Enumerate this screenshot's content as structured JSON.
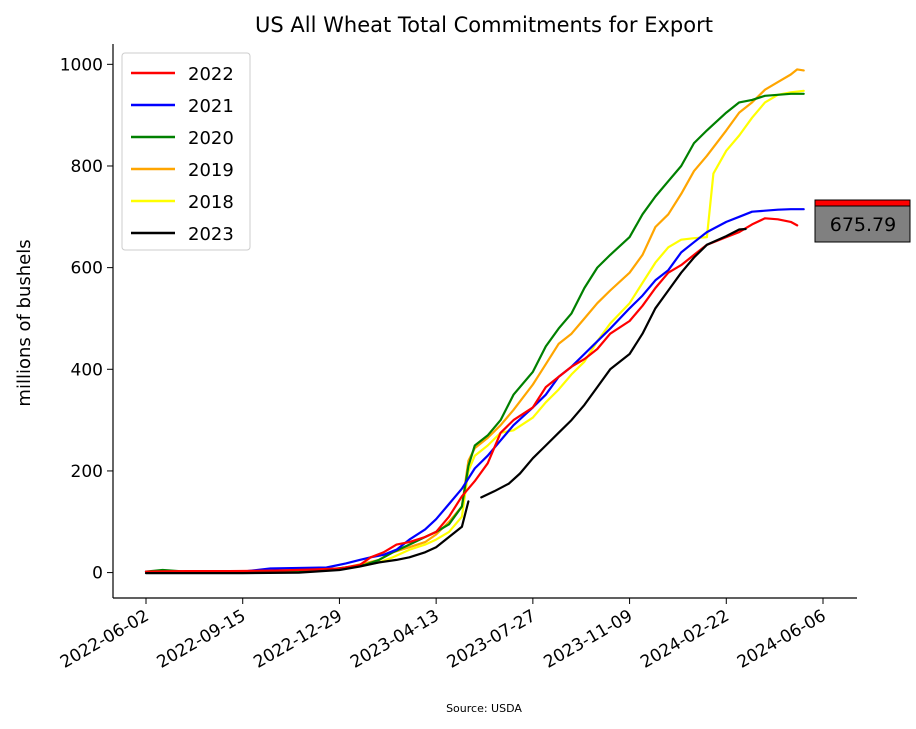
{
  "chart_data": {
    "type": "line",
    "title": "US All Wheat Total Commitments for Export",
    "xlabel": "",
    "ylabel": "millions of bushels",
    "source": "Source: USDA",
    "x_ticks": [
      "2022-06-02",
      "2022-09-15",
      "2022-12-29",
      "2023-04-13",
      "2023-07-27",
      "2023-11-09",
      "2024-02-22",
      "2024-06-06"
    ],
    "x_range": [
      "2022-06-02",
      "2024-06-06"
    ],
    "y_ticks": [
      0,
      200,
      400,
      600,
      800,
      1000
    ],
    "ylim": [
      -50,
      1040
    ],
    "grid": false,
    "legend_position": "top-left",
    "last_value_label": "675.79",
    "series": [
      {
        "name": "2022",
        "color": "#ff0000",
        "points": [
          [
            "2022-06-02",
            2
          ],
          [
            "2022-07-15",
            3
          ],
          [
            "2022-09-01",
            3
          ],
          [
            "2022-10-20",
            4
          ],
          [
            "2022-12-01",
            6
          ],
          [
            "2022-12-29",
            8
          ],
          [
            "2023-01-20",
            15
          ],
          [
            "2023-02-01",
            30
          ],
          [
            "2023-02-15",
            40
          ],
          [
            "2023-03-01",
            55
          ],
          [
            "2023-03-15",
            60
          ],
          [
            "2023-04-01",
            70
          ],
          [
            "2023-04-13",
            80
          ],
          [
            "2023-04-27",
            110
          ],
          [
            "2023-05-11",
            150
          ],
          [
            "2023-05-25",
            180
          ],
          [
            "2023-06-08",
            215
          ],
          [
            "2023-06-22",
            275
          ],
          [
            "2023-07-06",
            300
          ],
          [
            "2023-07-27",
            325
          ],
          [
            "2023-08-10",
            365
          ],
          [
            "2023-08-24",
            385
          ],
          [
            "2023-09-07",
            405
          ],
          [
            "2023-09-21",
            420
          ],
          [
            "2023-10-05",
            440
          ],
          [
            "2023-10-19",
            470
          ],
          [
            "2023-11-09",
            495
          ],
          [
            "2023-11-23",
            525
          ],
          [
            "2023-12-07",
            560
          ],
          [
            "2023-12-21",
            590
          ],
          [
            "2024-01-04",
            605
          ],
          [
            "2024-01-18",
            625
          ],
          [
            "2024-02-01",
            645
          ],
          [
            "2024-02-22",
            660
          ],
          [
            "2024-03-07",
            670
          ],
          [
            "2024-03-21",
            685
          ],
          [
            "2024-04-04",
            697
          ],
          [
            "2024-04-18",
            695
          ],
          [
            "2024-05-02",
            690
          ],
          [
            "2024-05-09",
            683
          ]
        ]
      },
      {
        "name": "2021",
        "color": "#0000ff",
        "points": [
          [
            "2022-06-02",
            2
          ],
          [
            "2022-08-01",
            2
          ],
          [
            "2022-09-15",
            2
          ],
          [
            "2022-10-15",
            8
          ],
          [
            "2022-11-15",
            9
          ],
          [
            "2022-12-15",
            10
          ],
          [
            "2023-01-05",
            18
          ],
          [
            "2023-01-20",
            25
          ],
          [
            "2023-02-01",
            30
          ],
          [
            "2023-02-15",
            35
          ],
          [
            "2023-03-01",
            45
          ],
          [
            "2023-03-15",
            65
          ],
          [
            "2023-04-01",
            85
          ],
          [
            "2023-04-13",
            105
          ],
          [
            "2023-04-27",
            135
          ],
          [
            "2023-05-11",
            165
          ],
          [
            "2023-05-25",
            205
          ],
          [
            "2023-06-08",
            230
          ],
          [
            "2023-06-22",
            260
          ],
          [
            "2023-07-06",
            290
          ],
          [
            "2023-07-27",
            325
          ],
          [
            "2023-08-10",
            350
          ],
          [
            "2023-08-24",
            385
          ],
          [
            "2023-09-07",
            405
          ],
          [
            "2023-09-21",
            430
          ],
          [
            "2023-10-05",
            455
          ],
          [
            "2023-10-19",
            480
          ],
          [
            "2023-11-09",
            520
          ],
          [
            "2023-11-23",
            545
          ],
          [
            "2023-12-07",
            575
          ],
          [
            "2023-12-21",
            595
          ],
          [
            "2024-01-04",
            630
          ],
          [
            "2024-01-18",
            650
          ],
          [
            "2024-02-01",
            670
          ],
          [
            "2024-02-22",
            690
          ],
          [
            "2024-03-07",
            700
          ],
          [
            "2024-03-21",
            710
          ],
          [
            "2024-04-04",
            712
          ],
          [
            "2024-04-18",
            714
          ],
          [
            "2024-05-02",
            715
          ],
          [
            "2024-05-16",
            715
          ]
        ]
      },
      {
        "name": "2020",
        "color": "#008000",
        "points": [
          [
            "2022-06-02",
            2
          ],
          [
            "2022-06-20",
            5
          ],
          [
            "2022-07-15",
            2
          ],
          [
            "2022-09-15",
            2
          ],
          [
            "2022-11-01",
            3
          ],
          [
            "2022-12-15",
            5
          ],
          [
            "2023-01-05",
            10
          ],
          [
            "2023-01-25",
            15
          ],
          [
            "2023-02-10",
            25
          ],
          [
            "2023-02-25",
            40
          ],
          [
            "2023-03-15",
            55
          ],
          [
            "2023-04-01",
            70
          ],
          [
            "2023-04-13",
            80
          ],
          [
            "2023-04-27",
            95
          ],
          [
            "2023-05-11",
            130
          ],
          [
            "2023-05-18",
            210
          ],
          [
            "2023-05-25",
            250
          ],
          [
            "2023-06-08",
            270
          ],
          [
            "2023-06-22",
            300
          ],
          [
            "2023-07-06",
            350
          ],
          [
            "2023-07-27",
            395
          ],
          [
            "2023-08-10",
            445
          ],
          [
            "2023-08-24",
            480
          ],
          [
            "2023-09-07",
            510
          ],
          [
            "2023-09-21",
            560
          ],
          [
            "2023-10-05",
            600
          ],
          [
            "2023-10-19",
            625
          ],
          [
            "2023-11-09",
            660
          ],
          [
            "2023-11-23",
            705
          ],
          [
            "2023-12-07",
            740
          ],
          [
            "2023-12-21",
            770
          ],
          [
            "2024-01-04",
            800
          ],
          [
            "2024-01-18",
            845
          ],
          [
            "2024-02-01",
            870
          ],
          [
            "2024-02-22",
            905
          ],
          [
            "2024-03-07",
            925
          ],
          [
            "2024-03-21",
            930
          ],
          [
            "2024-04-04",
            938
          ],
          [
            "2024-04-18",
            940
          ],
          [
            "2024-05-02",
            942
          ],
          [
            "2024-05-16",
            942
          ]
        ]
      },
      {
        "name": "2019",
        "color": "#ffa500",
        "points": [
          [
            "2022-06-02",
            2
          ],
          [
            "2022-07-15",
            2
          ],
          [
            "2022-09-15",
            2
          ],
          [
            "2022-11-01",
            4
          ],
          [
            "2022-12-15",
            6
          ],
          [
            "2023-01-05",
            10
          ],
          [
            "2023-01-25",
            18
          ],
          [
            "2023-02-10",
            25
          ],
          [
            "2023-02-25",
            40
          ],
          [
            "2023-03-15",
            50
          ],
          [
            "2023-04-01",
            60
          ],
          [
            "2023-04-13",
            75
          ],
          [
            "2023-04-27",
            100
          ],
          [
            "2023-05-11",
            130
          ],
          [
            "2023-05-18",
            220
          ],
          [
            "2023-05-25",
            245
          ],
          [
            "2023-06-08",
            265
          ],
          [
            "2023-06-22",
            290
          ],
          [
            "2023-07-06",
            320
          ],
          [
            "2023-07-27",
            370
          ],
          [
            "2023-08-10",
            410
          ],
          [
            "2023-08-24",
            450
          ],
          [
            "2023-09-07",
            470
          ],
          [
            "2023-09-21",
            500
          ],
          [
            "2023-10-05",
            530
          ],
          [
            "2023-10-19",
            555
          ],
          [
            "2023-11-09",
            590
          ],
          [
            "2023-11-23",
            625
          ],
          [
            "2023-12-07",
            680
          ],
          [
            "2023-12-21",
            705
          ],
          [
            "2024-01-04",
            745
          ],
          [
            "2024-01-18",
            790
          ],
          [
            "2024-02-01",
            820
          ],
          [
            "2024-02-22",
            870
          ],
          [
            "2024-03-07",
            905
          ],
          [
            "2024-03-21",
            925
          ],
          [
            "2024-04-04",
            950
          ],
          [
            "2024-04-18",
            965
          ],
          [
            "2024-05-02",
            980
          ],
          [
            "2024-05-09",
            990
          ],
          [
            "2024-05-16",
            988
          ]
        ]
      },
      {
        "name": "2018",
        "color": "#ffff00",
        "points": [
          [
            "2022-06-02",
            2
          ],
          [
            "2022-07-15",
            2
          ],
          [
            "2022-09-15",
            2
          ],
          [
            "2022-11-01",
            3
          ],
          [
            "2022-12-15",
            5
          ],
          [
            "2023-01-05",
            8
          ],
          [
            "2023-01-25",
            15
          ],
          [
            "2023-02-10",
            20
          ],
          [
            "2023-02-25",
            30
          ],
          [
            "2023-03-15",
            45
          ],
          [
            "2023-04-01",
            55
          ],
          [
            "2023-04-13",
            65
          ],
          [
            "2023-04-27",
            80
          ],
          [
            "2023-05-11",
            110
          ],
          [
            "2023-05-18",
            200
          ],
          [
            "2023-05-25",
            230
          ],
          [
            "2023-06-08",
            250
          ],
          [
            "2023-06-22",
            275
          ],
          [
            "2023-07-06",
            280
          ],
          [
            "2023-07-27",
            305
          ],
          [
            "2023-08-10",
            335
          ],
          [
            "2023-08-24",
            360
          ],
          [
            "2023-09-07",
            390
          ],
          [
            "2023-09-21",
            415
          ],
          [
            "2023-10-05",
            455
          ],
          [
            "2023-10-19",
            490
          ],
          [
            "2023-11-09",
            530
          ],
          [
            "2023-11-23",
            570
          ],
          [
            "2023-12-07",
            610
          ],
          [
            "2023-12-21",
            640
          ],
          [
            "2024-01-04",
            655
          ],
          [
            "2024-01-18",
            658
          ],
          [
            "2024-02-01",
            660
          ],
          [
            "2024-02-08",
            785
          ],
          [
            "2024-02-22",
            830
          ],
          [
            "2024-03-07",
            860
          ],
          [
            "2024-03-21",
            895
          ],
          [
            "2024-04-04",
            925
          ],
          [
            "2024-04-18",
            940
          ],
          [
            "2024-05-02",
            945
          ],
          [
            "2024-05-16",
            948
          ]
        ]
      },
      {
        "name": "2023",
        "color": "#000000",
        "points": [
          [
            "2022-06-02",
            -1
          ],
          [
            "2022-08-01",
            -1
          ],
          [
            "2022-09-15",
            -1
          ],
          [
            "2022-11-15",
            0
          ],
          [
            "2022-12-29",
            5
          ],
          [
            "2023-01-20",
            12
          ],
          [
            "2023-02-10",
            20
          ],
          [
            "2023-03-01",
            25
          ],
          [
            "2023-03-15",
            30
          ],
          [
            "2023-04-01",
            40
          ],
          [
            "2023-04-13",
            50
          ],
          [
            "2023-04-27",
            70
          ],
          [
            "2023-05-11",
            90
          ],
          [
            "2023-05-18",
            140
          ],
          null,
          [
            "2023-06-01",
            148
          ],
          [
            "2023-06-15",
            160
          ],
          [
            "2023-07-01",
            175
          ],
          [
            "2023-07-13",
            195
          ],
          [
            "2023-07-27",
            225
          ],
          [
            "2023-08-10",
            250
          ],
          [
            "2023-08-24",
            275
          ],
          [
            "2023-09-07",
            300
          ],
          [
            "2023-09-21",
            330
          ],
          [
            "2023-10-05",
            365
          ],
          [
            "2023-10-19",
            400
          ],
          [
            "2023-11-09",
            430
          ],
          [
            "2023-11-23",
            470
          ],
          [
            "2023-12-07",
            520
          ],
          [
            "2023-12-21",
            555
          ],
          [
            "2024-01-04",
            590
          ],
          [
            "2024-01-18",
            620
          ],
          [
            "2024-02-01",
            645
          ],
          [
            "2024-02-22",
            662
          ],
          [
            "2024-03-07",
            675
          ],
          [
            "2024-03-14",
            676
          ]
        ]
      }
    ]
  }
}
